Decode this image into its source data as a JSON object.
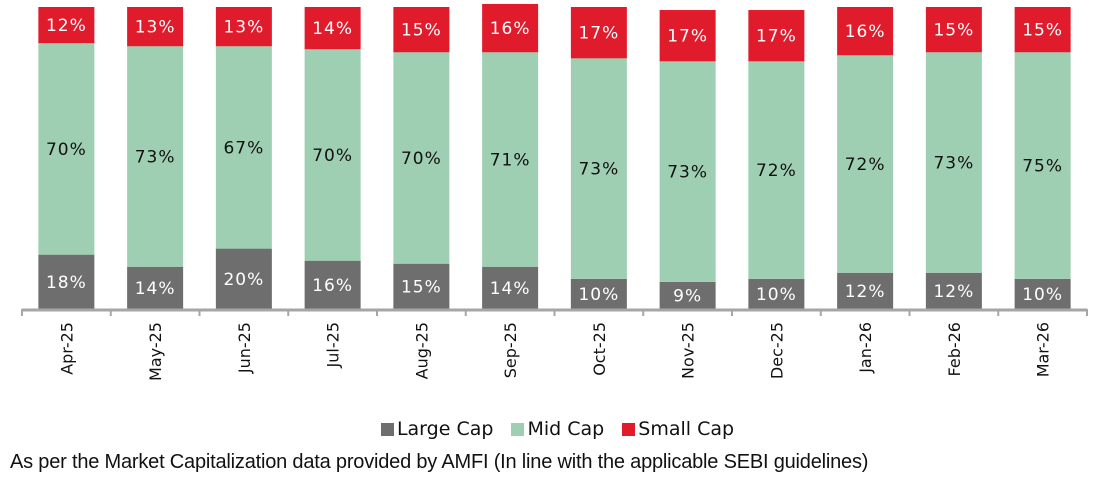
{
  "chart_data": {
    "type": "bar",
    "stacked": true,
    "title": "",
    "xlabel": "",
    "ylabel": "",
    "ylim": [
      0,
      100
    ],
    "grid": false,
    "legend_position": "bottom",
    "categories": [
      "Apr-25",
      "May-25",
      "Jun-25",
      "Jul-25",
      "Aug-25",
      "Sep-25",
      "Oct-25",
      "Nov-25",
      "Dec-25",
      "Jan-26",
      "Feb-26",
      "Mar-26"
    ],
    "series": [
      {
        "name": "Large Cap",
        "color": "#6e6e6e",
        "label_color": "#ffffff",
        "values": [
          18,
          14,
          20,
          16,
          15,
          14,
          10,
          9,
          10,
          12,
          12,
          10
        ]
      },
      {
        "name": "Mid Cap",
        "color": "#9fcfb2",
        "label_color": "#111111",
        "values": [
          70,
          73,
          67,
          70,
          70,
          71,
          73,
          73,
          72,
          72,
          73,
          75
        ]
      },
      {
        "name": "Small Cap",
        "color": "#e01b2c",
        "label_color": "#ffffff",
        "values": [
          12,
          13,
          13,
          14,
          15,
          16,
          17,
          17,
          17,
          16,
          15,
          15
        ]
      }
    ],
    "value_suffix": "%"
  },
  "legend": {
    "items": [
      {
        "label": "Large Cap",
        "color": "#6e6e6e"
      },
      {
        "label": "Mid Cap",
        "color": "#9fcfb2"
      },
      {
        "label": "Small Cap",
        "color": "#e01b2c"
      }
    ]
  },
  "footnote": "As per the Market Capitalization data provided by AMFI (In line with the applicable SEBI guidelines)"
}
